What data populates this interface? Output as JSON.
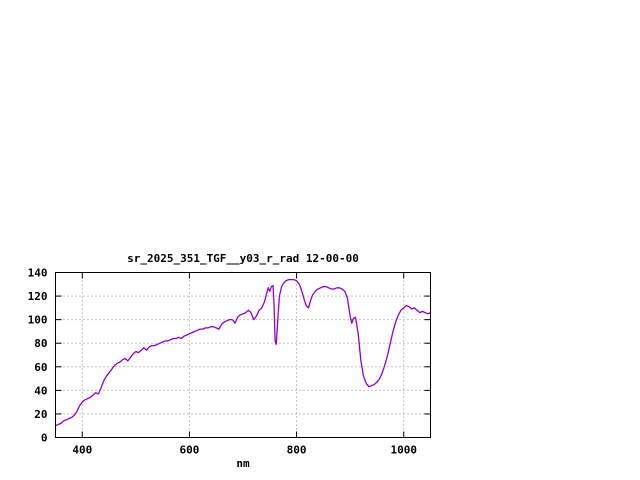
{
  "window": {
    "background_color": "#ffffff"
  },
  "chart_data": {
    "type": "line",
    "title": "sr_2025_351_TGF__y03_r_rad 12-00-00",
    "xlabel": "nm",
    "ylabel": "",
    "xlim": [
      350,
      1050
    ],
    "ylim": [
      0,
      140
    ],
    "x_ticks": [
      400,
      600,
      800,
      1000
    ],
    "y_ticks": [
      0,
      20,
      40,
      60,
      80,
      100,
      120,
      140
    ],
    "grid": true,
    "legend": "none",
    "line_color": "#9400d3",
    "grid_color": "#8a8a8a",
    "axis_color": "#000000",
    "series": [
      {
        "name": "sr_2025_351_TGF__y03_r_rad",
        "points": [
          [
            350,
            10
          ],
          [
            355,
            11
          ],
          [
            360,
            12
          ],
          [
            365,
            14
          ],
          [
            370,
            15
          ],
          [
            375,
            16
          ],
          [
            380,
            17
          ],
          [
            385,
            19
          ],
          [
            390,
            22
          ],
          [
            395,
            27
          ],
          [
            400,
            30
          ],
          [
            405,
            32
          ],
          [
            410,
            33
          ],
          [
            415,
            34
          ],
          [
            420,
            36
          ],
          [
            425,
            38
          ],
          [
            430,
            37
          ],
          [
            435,
            42
          ],
          [
            440,
            48
          ],
          [
            445,
            52
          ],
          [
            450,
            55
          ],
          [
            455,
            58
          ],
          [
            460,
            61
          ],
          [
            465,
            63
          ],
          [
            470,
            64
          ],
          [
            475,
            66
          ],
          [
            480,
            67
          ],
          [
            485,
            65
          ],
          [
            490,
            68
          ],
          [
            495,
            71
          ],
          [
            500,
            73
          ],
          [
            505,
            72
          ],
          [
            510,
            74
          ],
          [
            515,
            76
          ],
          [
            520,
            74
          ],
          [
            525,
            77
          ],
          [
            530,
            78
          ],
          [
            535,
            78
          ],
          [
            540,
            79
          ],
          [
            545,
            80
          ],
          [
            550,
            81
          ],
          [
            555,
            82
          ],
          [
            560,
            82
          ],
          [
            565,
            83
          ],
          [
            570,
            84
          ],
          [
            575,
            84
          ],
          [
            580,
            85
          ],
          [
            585,
            84
          ],
          [
            590,
            86
          ],
          [
            595,
            87
          ],
          [
            600,
            88
          ],
          [
            605,
            89
          ],
          [
            610,
            90
          ],
          [
            615,
            91
          ],
          [
            620,
            92
          ],
          [
            625,
            92
          ],
          [
            630,
            93
          ],
          [
            635,
            93
          ],
          [
            640,
            94
          ],
          [
            645,
            94
          ],
          [
            650,
            93
          ],
          [
            655,
            92
          ],
          [
            660,
            96
          ],
          [
            665,
            98
          ],
          [
            670,
            99
          ],
          [
            675,
            100
          ],
          [
            680,
            100
          ],
          [
            685,
            97
          ],
          [
            690,
            102
          ],
          [
            695,
            104
          ],
          [
            700,
            105
          ],
          [
            705,
            106
          ],
          [
            710,
            108
          ],
          [
            715,
            106
          ],
          [
            720,
            100
          ],
          [
            725,
            103
          ],
          [
            730,
            108
          ],
          [
            735,
            110
          ],
          [
            740,
            115
          ],
          [
            744,
            122
          ],
          [
            747,
            127
          ],
          [
            750,
            124
          ],
          [
            753,
            128
          ],
          [
            756,
            129
          ],
          [
            758,
            112
          ],
          [
            760,
            82
          ],
          [
            762,
            79
          ],
          [
            765,
            100
          ],
          [
            768,
            120
          ],
          [
            772,
            128
          ],
          [
            776,
            131
          ],
          [
            780,
            133
          ],
          [
            785,
            134
          ],
          [
            790,
            134
          ],
          [
            795,
            134
          ],
          [
            800,
            133
          ],
          [
            805,
            130
          ],
          [
            810,
            124
          ],
          [
            815,
            116
          ],
          [
            818,
            112
          ],
          [
            822,
            110
          ],
          [
            826,
            116
          ],
          [
            830,
            121
          ],
          [
            835,
            124
          ],
          [
            840,
            126
          ],
          [
            845,
            127
          ],
          [
            850,
            128
          ],
          [
            855,
            128
          ],
          [
            860,
            127
          ],
          [
            865,
            126
          ],
          [
            870,
            126
          ],
          [
            875,
            127
          ],
          [
            880,
            127
          ],
          [
            885,
            126
          ],
          [
            890,
            124
          ],
          [
            895,
            118
          ],
          [
            900,
            103
          ],
          [
            903,
            97
          ],
          [
            906,
            101
          ],
          [
            910,
            102
          ],
          [
            915,
            88
          ],
          [
            920,
            65
          ],
          [
            925,
            52
          ],
          [
            930,
            46
          ],
          [
            935,
            43
          ],
          [
            940,
            44
          ],
          [
            945,
            45
          ],
          [
            950,
            47
          ],
          [
            955,
            50
          ],
          [
            960,
            55
          ],
          [
            965,
            62
          ],
          [
            970,
            70
          ],
          [
            975,
            80
          ],
          [
            980,
            90
          ],
          [
            985,
            98
          ],
          [
            990,
            104
          ],
          [
            995,
            108
          ],
          [
            1000,
            110
          ],
          [
            1005,
            112
          ],
          [
            1010,
            111
          ],
          [
            1015,
            109
          ],
          [
            1020,
            110
          ],
          [
            1025,
            108
          ],
          [
            1030,
            106
          ],
          [
            1035,
            107
          ],
          [
            1040,
            106
          ],
          [
            1045,
            105
          ],
          [
            1050,
            106
          ]
        ]
      }
    ]
  }
}
